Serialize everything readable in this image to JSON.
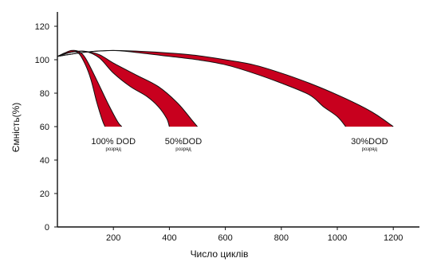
{
  "chart_data": {
    "type": "area",
    "xlabel": "Число циклів",
    "ylabel": "Ємність(%)",
    "xlim": [
      0,
      1300
    ],
    "ylim": [
      0,
      130
    ],
    "x_ticks": [
      200,
      400,
      600,
      800,
      1000,
      1200
    ],
    "y_ticks": [
      0,
      20,
      40,
      60,
      80,
      100,
      120
    ],
    "grid": false,
    "colors": {
      "band": "#c8001e",
      "axis": "#111111"
    },
    "series": [
      {
        "label": "100% DOD",
        "sublabel": "розряд",
        "upper": [
          [
            0,
            102
          ],
          [
            25,
            104
          ],
          [
            50,
            105.5
          ],
          [
            75,
            105
          ],
          [
            100,
            101
          ],
          [
            140,
            88
          ],
          [
            180,
            74
          ],
          [
            215,
            63
          ],
          [
            230,
            60
          ]
        ],
        "lower": [
          [
            0,
            102
          ],
          [
            25,
            103.5
          ],
          [
            50,
            104.5
          ],
          [
            75,
            104
          ],
          [
            100,
            97
          ],
          [
            120,
            88
          ],
          [
            140,
            75
          ],
          [
            160,
            64
          ],
          [
            170,
            60
          ]
        ]
      },
      {
        "label": "50%DOD",
        "sublabel": "розряд",
        "upper": [
          [
            0,
            102
          ],
          [
            50,
            104.5
          ],
          [
            100,
            105
          ],
          [
            150,
            103
          ],
          [
            200,
            98
          ],
          [
            280,
            91
          ],
          [
            360,
            84
          ],
          [
            430,
            74
          ],
          [
            480,
            64
          ],
          [
            500,
            60
          ]
        ],
        "lower": [
          [
            0,
            102
          ],
          [
            50,
            104.5
          ],
          [
            100,
            105
          ],
          [
            150,
            101
          ],
          [
            200,
            92
          ],
          [
            260,
            84
          ],
          [
            320,
            78
          ],
          [
            360,
            72
          ],
          [
            390,
            65
          ],
          [
            400,
            60
          ]
        ]
      },
      {
        "label": "30%DOD",
        "sublabel": "розряд",
        "upper": [
          [
            0,
            102
          ],
          [
            100,
            104.5
          ],
          [
            200,
            105.5
          ],
          [
            300,
            105
          ],
          [
            400,
            104
          ],
          [
            500,
            102.5
          ],
          [
            600,
            100
          ],
          [
            700,
            97
          ],
          [
            800,
            92
          ],
          [
            900,
            86
          ],
          [
            1000,
            79
          ],
          [
            1100,
            71
          ],
          [
            1150,
            66
          ],
          [
            1200,
            60
          ]
        ],
        "lower": [
          [
            0,
            102
          ],
          [
            100,
            104.5
          ],
          [
            200,
            105.5
          ],
          [
            300,
            104
          ],
          [
            400,
            102
          ],
          [
            500,
            100
          ],
          [
            600,
            97
          ],
          [
            700,
            92
          ],
          [
            800,
            86
          ],
          [
            900,
            79
          ],
          [
            950,
            72
          ],
          [
            1000,
            66
          ],
          [
            1030,
            60
          ]
        ]
      }
    ]
  }
}
